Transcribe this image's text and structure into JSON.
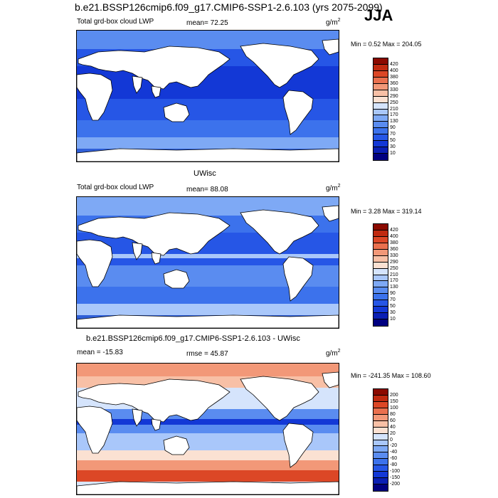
{
  "page": {
    "main_title": "b.e21.BSSP126cmip6.f09_g17.CMIP6-SSP1-2.6.103 (yrs 2075-2099)",
    "season": "JJA"
  },
  "panels": [
    {
      "id": "model",
      "title": "",
      "left_label": "Total grd-box cloud LWP",
      "center_label": "mean=  72.25",
      "unit_base": "g/m",
      "unit_exp": "2",
      "minmax": "Min =   0.52 Max = 204.05"
    },
    {
      "id": "obs",
      "title": "UWisc",
      "left_label": "Total grd-box cloud LWP",
      "center_label": "mean=  88.08",
      "unit_base": "g/m",
      "unit_exp": "2",
      "minmax": "Min =   3.28 Max = 319.14"
    },
    {
      "id": "diff",
      "title": "b.e21.BSSP126cmip6.f09_g17.CMIP6-SSP1-2.6.103 - UWisc",
      "left_label": "mean = -15.83",
      "center_label": "rmse =  45.87",
      "unit_base": "g/m",
      "unit_exp": "2",
      "minmax": "Min = -241.35 Max = 108.60"
    }
  ],
  "chart_data": [
    {
      "type": "heatmap",
      "title": "Total grd-box cloud LWP",
      "mean": 72.25,
      "min": 0.52,
      "max": 204.05,
      "units": "g/m2",
      "colorbar_levels": [
        10,
        30,
        50,
        70,
        90,
        130,
        170,
        210,
        250,
        290,
        330,
        360,
        380,
        400,
        420
      ],
      "colorbar_labels": [
        "420",
        "400",
        "380",
        "360",
        "330",
        "290",
        "250",
        "210",
        "170",
        "130",
        "90",
        "70",
        "50",
        "30",
        "10"
      ],
      "colors": [
        "#000080",
        "#0a1fb4",
        "#1338d6",
        "#2656e6",
        "#3c72ec",
        "#5a8cf0",
        "#7ea9f5",
        "#a9c7fa",
        "#d5e4fc",
        "#fbe1d2",
        "#f8c0a6",
        "#f29878",
        "#ea704e",
        "#dc4726",
        "#c02a10",
        "#8b0a00"
      ]
    },
    {
      "type": "heatmap",
      "title": "UWisc",
      "mean": 88.08,
      "min": 3.28,
      "max": 319.14,
      "units": "g/m2",
      "colorbar_levels": [
        10,
        30,
        50,
        70,
        90,
        130,
        170,
        210,
        250,
        290,
        330,
        360,
        380,
        400,
        420
      ],
      "colorbar_labels": [
        "420",
        "400",
        "380",
        "360",
        "330",
        "290",
        "250",
        "210",
        "170",
        "130",
        "90",
        "70",
        "50",
        "30",
        "10"
      ],
      "colors": [
        "#000080",
        "#0a1fb4",
        "#1338d6",
        "#2656e6",
        "#3c72ec",
        "#5a8cf0",
        "#7ea9f5",
        "#a9c7fa",
        "#d5e4fc",
        "#fbe1d2",
        "#f8c0a6",
        "#f29878",
        "#ea704e",
        "#dc4726",
        "#c02a10",
        "#8b0a00"
      ]
    },
    {
      "type": "heatmap",
      "title": "b.e21.BSSP126cmip6.f09_g17.CMIP6-SSP1-2.6.103 - UWisc",
      "mean": -15.83,
      "rmse": 45.87,
      "min": -241.35,
      "max": 108.6,
      "units": "g/m2",
      "colorbar_levels": [
        -200,
        -150,
        -100,
        -80,
        -60,
        -40,
        -20,
        0,
        20,
        40,
        60,
        80,
        100,
        150,
        200
      ],
      "colorbar_labels": [
        "200",
        "150",
        "100",
        "80",
        "60",
        "40",
        "20",
        "0",
        "-20",
        "-40",
        "-60",
        "-80",
        "-100",
        "-150",
        "-200"
      ],
      "colors": [
        "#000080",
        "#0a1fb4",
        "#1338d6",
        "#2656e6",
        "#3c72ec",
        "#5a8cf0",
        "#7ea9f5",
        "#a9c7fa",
        "#d5e4fc",
        "#fbe1d2",
        "#f8c0a6",
        "#f29878",
        "#ea704e",
        "#dc4726",
        "#c02a10",
        "#8b0a00"
      ]
    }
  ]
}
